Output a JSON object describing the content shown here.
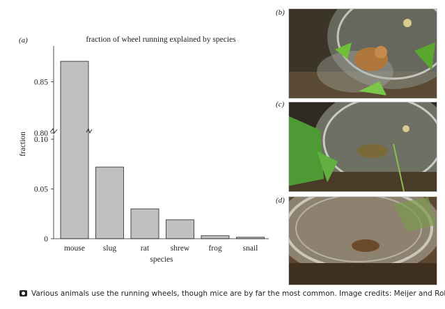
{
  "panel_labels": {
    "a": "(a)",
    "b": "(b)",
    "c": "(c)",
    "d": "(d)"
  },
  "chart_data": {
    "type": "bar",
    "title": "fraction of wheel running explained by species",
    "xlabel": "species",
    "ylabel": "fraction",
    "categories": [
      "mouse",
      "slug",
      "rat",
      "shrew",
      "frog",
      "snail"
    ],
    "values": [
      0.87,
      0.072,
      0.03,
      0.019,
      0.003,
      0.0015
    ],
    "y_ticks": [
      0,
      0.05,
      0.1,
      0.8,
      0.85
    ],
    "y_tick_labels": [
      "0",
      "0.05",
      "0.10",
      "0.80",
      "0.85"
    ],
    "axis_break": [
      0.1,
      0.8
    ],
    "ylim": [
      0,
      0.885
    ],
    "bar_color": "#c0c0c0",
    "bar_edge_color": "#222222",
    "grid": false,
    "legend": "none"
  },
  "photos": [
    {
      "id": "b",
      "icon": "mouse-in-wheel-photo"
    },
    {
      "id": "c",
      "icon": "frog-in-wheel-photo"
    },
    {
      "id": "d",
      "icon": "animal-in-wheel-photo"
    }
  ],
  "caption": {
    "icon": "camera-icon",
    "text": "Various animals use the running wheels, though mice are by far the most common. Image credits: Meijer and Robbers."
  }
}
